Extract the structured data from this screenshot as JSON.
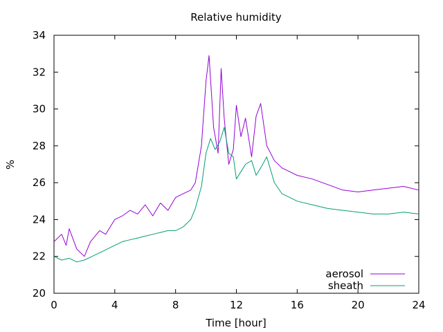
{
  "chart_data": {
    "type": "line",
    "title": "Relative humidity",
    "xlabel": "Time [hour]",
    "ylabel": "%",
    "xlim": [
      0,
      24
    ],
    "ylim": [
      20,
      34
    ],
    "xticks": [
      0,
      4,
      8,
      12,
      16,
      20,
      24
    ],
    "yticks": [
      20,
      22,
      24,
      26,
      28,
      30,
      32,
      34
    ],
    "grid": false,
    "legend": "bottom-right",
    "series": [
      {
        "name": "aerosol",
        "color": "#9400d3",
        "x": [
          0.0,
          0.5,
          0.8,
          1.0,
          1.5,
          2.0,
          2.4,
          3.0,
          3.4,
          4.0,
          4.5,
          5.0,
          5.5,
          6.0,
          6.5,
          7.0,
          7.5,
          8.0,
          8.5,
          9.0,
          9.3,
          9.7,
          10.0,
          10.2,
          10.5,
          10.8,
          11.0,
          11.2,
          11.5,
          11.8,
          12.0,
          12.3,
          12.6,
          13.0,
          13.3,
          13.6,
          14.0,
          14.5,
          15.0,
          15.5,
          16.0,
          17.0,
          18.0,
          19.0,
          20.0,
          21.0,
          22.0,
          23.0,
          24.0
        ],
        "y": [
          22.8,
          23.2,
          22.6,
          23.5,
          22.4,
          22.0,
          22.8,
          23.4,
          23.2,
          24.0,
          24.2,
          24.5,
          24.3,
          24.8,
          24.2,
          24.9,
          24.5,
          25.2,
          25.4,
          25.6,
          26.0,
          28.0,
          31.5,
          32.9,
          29.0,
          27.6,
          32.2,
          29.5,
          27.0,
          27.8,
          30.2,
          28.5,
          29.5,
          27.4,
          29.6,
          30.3,
          28.0,
          27.2,
          26.8,
          26.6,
          26.4,
          26.2,
          25.9,
          25.6,
          25.5,
          25.6,
          25.7,
          25.8,
          25.6
        ]
      },
      {
        "name": "sheath",
        "color": "#009e73",
        "x": [
          0.0,
          0.5,
          1.0,
          1.5,
          2.0,
          2.5,
          3.0,
          3.5,
          4.0,
          4.5,
          5.0,
          5.5,
          6.0,
          6.5,
          7.0,
          7.5,
          8.0,
          8.5,
          9.0,
          9.3,
          9.7,
          10.0,
          10.3,
          10.6,
          10.9,
          11.2,
          11.5,
          11.8,
          12.0,
          12.3,
          12.6,
          13.0,
          13.3,
          13.6,
          14.0,
          14.5,
          15.0,
          16.0,
          17.0,
          18.0,
          19.0,
          20.0,
          21.0,
          22.0,
          23.0,
          24.0
        ],
        "y": [
          22.0,
          21.8,
          21.9,
          21.7,
          21.8,
          22.0,
          22.2,
          22.4,
          22.6,
          22.8,
          22.9,
          23.0,
          23.1,
          23.2,
          23.3,
          23.4,
          23.4,
          23.6,
          24.0,
          24.6,
          25.8,
          27.6,
          28.4,
          27.8,
          28.2,
          29.0,
          27.6,
          27.4,
          26.2,
          26.6,
          27.0,
          27.2,
          26.4,
          26.8,
          27.4,
          26.0,
          25.4,
          25.0,
          24.8,
          24.6,
          24.5,
          24.4,
          24.3,
          24.3,
          24.4,
          24.3
        ]
      }
    ]
  }
}
